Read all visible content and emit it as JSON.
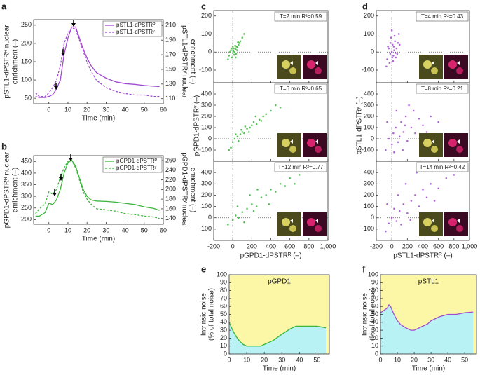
{
  "chart_data": [
    {
      "type": "line",
      "panel": "a",
      "legend": "upper right",
      "xlabel": "Time (min)",
      "ylabel": [
        "pSTL1-dPSTRᴿ nuclear",
        "enrichment (–)"
      ],
      "y2label": [
        "pSTL1-dPSTRʸ nuclear",
        "enrichment (–)"
      ],
      "x": [
        -7,
        -5,
        -2,
        0,
        2,
        4,
        6,
        8,
        10,
        12,
        14,
        16,
        18,
        20,
        22,
        25,
        30,
        35,
        40,
        45,
        50,
        55,
        58
      ],
      "series": [
        {
          "name": "pSTL1-dPSTRᴿ",
          "color": "#a24bd0",
          "linestyle": "solid",
          "values": [
            55,
            52,
            52,
            55,
            60,
            75,
            100,
            170,
            215,
            245,
            245,
            215,
            185,
            160,
            140,
            120,
            105,
            95,
            90,
            88,
            85,
            83,
            82
          ]
        },
        {
          "name": "pSTL1-dPSTRʸ",
          "color": "#a24bd0",
          "linestyle": "dashed",
          "axis": "y2",
          "values": [
            118,
            113,
            113,
            118,
            125,
            135,
            155,
            185,
            200,
            207,
            205,
            190,
            175,
            160,
            148,
            135,
            125,
            120,
            117,
            115,
            115,
            113,
            113
          ]
        }
      ],
      "xlim": [
        -8,
        60
      ],
      "xticks": [
        0,
        10,
        20,
        30,
        40,
        50,
        60
      ],
      "ylim": [
        35,
        265
      ],
      "yticks": [
        50,
        100,
        150,
        200,
        250
      ],
      "y2lim": [
        103,
        218
      ],
      "y2ticks": [
        110,
        130,
        150,
        170,
        190,
        210
      ]
    },
    {
      "type": "line",
      "panel": "b",
      "legend": "upper right",
      "xlabel": "Time (min)",
      "ylabel": [
        "pGPD1-dPSTRᴿ nuclear",
        "enrichment (–)"
      ],
      "y2label": [
        "pGPD1-dPSTRʸ nuclear",
        "enrichment (–)"
      ],
      "x": [
        -7,
        -5,
        -2,
        0,
        2,
        4,
        6,
        8,
        10,
        12,
        14,
        16,
        18,
        20,
        22,
        25,
        30,
        35,
        40,
        45,
        50,
        55,
        58
      ],
      "series": [
        {
          "name": "pGPD1-dPSTRᴿ",
          "color": "#3cb43c",
          "linestyle": "solid",
          "values": [
            215,
            215,
            230,
            270,
            265,
            285,
            330,
            400,
            445,
            455,
            430,
            380,
            330,
            300,
            285,
            280,
            278,
            275,
            270,
            265,
            255,
            248,
            240
          ]
        },
        {
          "name": "pGPD1-dPSTRʸ",
          "color": "#3cb43c",
          "linestyle": "dashed",
          "axis": "y2",
          "values": [
            150,
            160,
            170,
            195,
            190,
            200,
            225,
            245,
            258,
            260,
            245,
            220,
            195,
            180,
            170,
            160,
            158,
            155,
            150,
            148,
            145,
            143,
            140
          ]
        }
      ],
      "xlim": [
        -8,
        60
      ],
      "xticks": [
        0,
        10,
        20,
        30,
        40,
        50,
        60
      ],
      "ylim": [
        180,
        475
      ],
      "yticks": [
        200,
        250,
        300,
        350,
        400,
        450
      ],
      "y2lim": [
        128,
        270
      ],
      "y2ticks": [
        140,
        160,
        180,
        200,
        220,
        240,
        260
      ]
    },
    {
      "type": "scatter-grid",
      "panel": "c",
      "color": "#3cb43c",
      "xlabel": "pGPD1-dPSTRᴿ (–)",
      "ylabel": "pGPD1-dPSTRʸ (–)",
      "xlim": [
        -200,
        1000
      ],
      "xticks": [
        -200,
        0,
        200,
        400,
        600,
        800,
        {
          "value": 1000,
          "label": "1,000"
        }
      ],
      "subplots": [
        {
          "annotation": "T=2 min  R²=0.59",
          "ylim": [
            -170,
            230
          ],
          "yticks": [
            -100,
            0,
            100,
            200
          ],
          "x": [
            -40,
            -20,
            0,
            10,
            20,
            30,
            -10,
            40,
            50,
            60,
            -30,
            15,
            25,
            5,
            35,
            70,
            -50,
            45,
            80,
            100,
            -15,
            55,
            120,
            0,
            30
          ],
          "y": [
            -20,
            10,
            -5,
            20,
            0,
            15,
            -30,
            30,
            25,
            40,
            0,
            -15,
            35,
            5,
            -10,
            50,
            -40,
            10,
            60,
            80,
            20,
            55,
            100,
            30,
            -30
          ]
        },
        {
          "annotation": "T=6 min  R²=0.65",
          "ylim": [
            -200,
            500
          ],
          "yticks": [
            -100,
            0,
            100,
            200,
            300,
            400
          ],
          "x": [
            -20,
            0,
            20,
            50,
            80,
            100,
            120,
            150,
            180,
            200,
            220,
            250,
            280,
            300,
            320,
            350,
            400,
            450,
            60,
            90,
            130,
            170,
            240,
            30,
            -40,
            500
          ],
          "y": [
            -80,
            -30,
            0,
            20,
            40,
            60,
            50,
            90,
            100,
            120,
            150,
            130,
            170,
            160,
            200,
            220,
            250,
            300,
            -20,
            80,
            110,
            60,
            200,
            40,
            -100,
            280
          ]
        },
        {
          "annotation": "T=12 min  R²=0.77",
          "ylim": [
            -200,
            500
          ],
          "yticks": [
            -100,
            0,
            100,
            200,
            300,
            400
          ],
          "x": [
            -50,
            0,
            30,
            60,
            100,
            150,
            200,
            250,
            300,
            350,
            400,
            450,
            500,
            550,
            600,
            700,
            800,
            900,
            120,
            180,
            260,
            50,
            380,
            650,
            220
          ],
          "y": [
            -60,
            -20,
            20,
            0,
            50,
            80,
            120,
            100,
            180,
            200,
            250,
            230,
            300,
            280,
            350,
            380,
            420,
            450,
            -40,
            200,
            250,
            100,
            120,
            300,
            60
          ]
        }
      ]
    },
    {
      "type": "scatter-grid",
      "panel": "d",
      "color": "#a24bd0",
      "xlabel": "pSTL1-dPSTRᴿ (–)",
      "ylabel": "pSTL1-dPSTRʸ (–)",
      "xlim": [
        -200,
        1000
      ],
      "xticks": [
        -200,
        0,
        200,
        400,
        600,
        800,
        {
          "value": 1000,
          "label": "1,000"
        }
      ],
      "subplots": [
        {
          "annotation": "T=4 min  R²=0.43",
          "ylim": [
            -170,
            230
          ],
          "yticks": [
            -100,
            0,
            100,
            200
          ],
          "x": [
            -60,
            -40,
            -20,
            0,
            10,
            20,
            30,
            40,
            -30,
            50,
            60,
            -10,
            80,
            15,
            -50,
            35,
            70,
            100,
            -70,
            0,
            25,
            45,
            -20,
            90,
            5
          ],
          "y": [
            -40,
            20,
            -10,
            0,
            40,
            -20,
            10,
            60,
            -60,
            -30,
            20,
            80,
            50,
            -50,
            30,
            90,
            -10,
            40,
            -80,
            120,
            30,
            -5,
            50,
            100,
            -30
          ]
        },
        {
          "annotation": "T=8 min  R²=0.21",
          "ylim": [
            -200,
            500
          ],
          "yticks": [
            -100,
            0,
            100,
            200,
            300,
            400
          ],
          "x": [
            -80,
            -40,
            0,
            20,
            50,
            80,
            100,
            120,
            150,
            180,
            200,
            250,
            300,
            350,
            400,
            500,
            600,
            -60,
            60,
            140,
            220,
            280,
            450,
            30,
            170
          ],
          "y": [
            -100,
            0,
            -50,
            50,
            100,
            -30,
            20,
            150,
            60,
            200,
            -20,
            100,
            50,
            180,
            120,
            200,
            150,
            150,
            250,
            -100,
            300,
            250,
            60,
            -120,
            120
          ]
        },
        {
          "annotation": "T=14 min  R²=0.42",
          "ylim": [
            -200,
            500
          ],
          "yticks": [
            -100,
            0,
            100,
            200,
            300,
            400
          ],
          "x": [
            -80,
            -40,
            0,
            30,
            60,
            100,
            150,
            200,
            250,
            300,
            350,
            400,
            450,
            500,
            600,
            700,
            800,
            900,
            -60,
            80,
            180,
            320,
            120,
            550,
            240
          ],
          "y": [
            -120,
            -50,
            0,
            80,
            -30,
            60,
            120,
            40,
            150,
            200,
            100,
            250,
            180,
            300,
            260,
            350,
            380,
            420,
            120,
            200,
            300,
            400,
            -60,
            150,
            -20
          ]
        }
      ]
    },
    {
      "type": "area",
      "panel": "e",
      "annotation": "pGPD1",
      "color": "#3cb43c",
      "xlabel": "Time (min)",
      "ylabel": [
        "Intrinsic noise",
        "(% of total noise)"
      ],
      "x": [
        0,
        2,
        4,
        6,
        8,
        10,
        12,
        14,
        16,
        18,
        20,
        25,
        30,
        35,
        38,
        40,
        45,
        50,
        55
      ],
      "values": [
        40,
        30,
        22,
        16,
        12,
        10,
        10,
        10,
        10,
        10,
        12,
        17,
        25,
        32,
        35,
        35,
        35,
        35,
        33
      ],
      "xlim": [
        0,
        57
      ],
      "xticks": [
        0,
        10,
        20,
        30,
        40,
        50
      ],
      "ylim": [
        0,
        100
      ],
      "yticks": [
        0,
        10,
        20,
        30,
        40,
        50,
        60,
        70,
        80,
        90,
        100
      ]
    },
    {
      "type": "area",
      "panel": "f",
      "annotation": "pSTL1",
      "color": "#a24bd0",
      "xlabel": "Time (min)",
      "ylabel": [
        "Intrinsic noise",
        "(% of total noise)"
      ],
      "x": [
        0,
        2,
        4,
        5,
        6,
        8,
        10,
        12,
        15,
        18,
        20,
        22,
        25,
        28,
        30,
        35,
        40,
        45,
        50,
        55
      ],
      "values": [
        52,
        55,
        58,
        62,
        60,
        50,
        42,
        37,
        33,
        30,
        30,
        32,
        35,
        38,
        42,
        47,
        50,
        50,
        52,
        53
      ],
      "xlim": [
        0,
        57
      ],
      "xticks": [
        0,
        10,
        20,
        30,
        40,
        50
      ],
      "ylim": [
        0,
        100
      ],
      "yticks": [
        0,
        10,
        20,
        30,
        40,
        50,
        60,
        70,
        80,
        90,
        100
      ]
    }
  ]
}
